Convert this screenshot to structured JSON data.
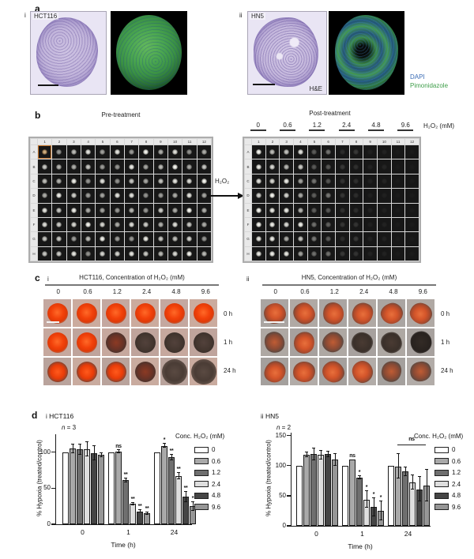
{
  "figure": {
    "panels": {
      "a": {
        "label": "a",
        "i": {
          "roman": "i",
          "cell_line": "HCT116"
        },
        "ii": {
          "roman": "ii",
          "cell_line": "HN5",
          "stain_label": "H&E"
        },
        "legend": {
          "dapi": "DAPI",
          "dapi_color": "#3a6cb5",
          "pimonidazole": "Pimonidazole",
          "pimonidazole_color": "#3f9e4a"
        }
      },
      "b": {
        "label": "b",
        "pre": {
          "title": "Pre-treatment",
          "cols": [
            "1",
            "2",
            "3",
            "4",
            "5",
            "6",
            "7",
            "8",
            "9",
            "10",
            "11",
            "12"
          ],
          "rows": [
            "A",
            "B",
            "C",
            "D",
            "E",
            "F",
            "G",
            "H"
          ],
          "highlight_cell": "A1"
        },
        "arrow_label": "H₂O₂",
        "post": {
          "title": "Post-treatment",
          "conc_labels": [
            "0",
            "0.6",
            "1.2",
            "2.4",
            "4.8",
            "9.6"
          ],
          "unit_label": "H₂O₂ (mM)",
          "cols": [
            "1",
            "2",
            "3",
            "4",
            "5",
            "6",
            "7",
            "8",
            "9",
            "10",
            "11",
            "12"
          ],
          "rows": [
            "A",
            "B",
            "C",
            "D",
            "E",
            "F",
            "G",
            "H"
          ],
          "pair_brightness": [
            0.95,
            0.82,
            0.38,
            0.13,
            0.05,
            0.02
          ]
        }
      },
      "c": {
        "label": "c",
        "i": {
          "roman": "i",
          "title": "HCT116, Concentration of H₂O₂ (mM)",
          "conc_labels": [
            "0",
            "0.6",
            "1.2",
            "2.4",
            "4.8",
            "9.6"
          ],
          "time_labels": [
            "0 h",
            "1 h",
            "24 h"
          ],
          "cells": [
            [
              "red",
              "red",
              "red",
              "red",
              "red",
              "red"
            ],
            [
              "red",
              "red",
              "dark-red",
              "dark",
              "dark",
              "dark"
            ],
            [
              "red-rim",
              "red-rim",
              "red-rim",
              "dark-red",
              "dark-big",
              "dark-big"
            ]
          ]
        },
        "ii": {
          "roman": "ii",
          "title": "HN5, Concentration of H₂O₂ (mM)",
          "conc_labels": [
            "0",
            "0.6",
            "1.2",
            "2.4",
            "4.8",
            "9.6"
          ],
          "time_labels": [
            "0 h",
            "1 h",
            "24 h"
          ],
          "cells": [
            [
              "blob-red",
              "blob-red",
              "blob-red",
              "blob-red",
              "blob-red",
              "blob-red"
            ],
            [
              "blob-dim",
              "blob-red",
              "blob-dim",
              "blob-dark",
              "blob-dark",
              "blob-darker"
            ],
            [
              "blob-red",
              "blob-red",
              "blob-red",
              "blob-red",
              "blob-dim",
              "blob-dim"
            ]
          ]
        }
      },
      "d": {
        "label": "d",
        "i": {
          "roman": "i"
        },
        "ii": {
          "roman": "ii"
        }
      }
    }
  },
  "chart_data": [
    {
      "type": "bar",
      "title": "HCT116",
      "n_italic": "n",
      "n_rest": " = 3",
      "categories": [
        "0",
        "1",
        "24"
      ],
      "xlabel": "Time (h)",
      "ylabel": "% Hypoxia (treated/control)",
      "ylim": [
        0,
        125
      ],
      "yticks": [
        0,
        50,
        100
      ],
      "legend_title": "Conc. H₂O₂ (mM)",
      "legend_position": "right",
      "grid": false,
      "series": [
        {
          "name": "0",
          "color": "#ffffff",
          "values": [
            100,
            100,
            100
          ],
          "errors": [
            0,
            0,
            0
          ],
          "sig": [
            "",
            "",
            ""
          ]
        },
        {
          "name": "0.6",
          "color": "#a9a9a9",
          "values": [
            105,
            101,
            109
          ],
          "errors": [
            6,
            2,
            3
          ],
          "sig": [
            "",
            "ns",
            "*"
          ]
        },
        {
          "name": "1.2",
          "color": "#6f6f6f",
          "values": [
            104,
            61,
            93
          ],
          "errors": [
            7,
            3,
            4
          ],
          "sig": [
            "",
            "**",
            "**"
          ]
        },
        {
          "name": "2.4",
          "color": "#dedede",
          "values": [
            104,
            28,
            67
          ],
          "errors": [
            10,
            2,
            4
          ],
          "sig": [
            "",
            "**",
            "**"
          ]
        },
        {
          "name": "4.8",
          "color": "#454545",
          "values": [
            99,
            18,
            38
          ],
          "errors": [
            10,
            2,
            7
          ],
          "sig": [
            "",
            "**",
            "**"
          ]
        },
        {
          "name": "9.6",
          "color": "#969696",
          "values": [
            96,
            15,
            25
          ],
          "errors": [
            3,
            2,
            6
          ],
          "sig": [
            "",
            "**",
            "*"
          ]
        }
      ]
    },
    {
      "type": "bar",
      "title": "HN5",
      "n_italic": "n",
      "n_rest": " = 2",
      "categories": [
        "0",
        "1",
        "24"
      ],
      "xlabel": "Time (h)",
      "ylabel": "% Hypoxia (treated/control)",
      "ylim": [
        0,
        155
      ],
      "yticks": [
        0,
        50,
        100,
        150
      ],
      "legend_title": "Conc. H₂O₂ (mM)",
      "legend_position": "right",
      "grid": false,
      "series": [
        {
          "name": "0",
          "color": "#ffffff",
          "values": [
            100,
            100,
            100
          ],
          "errors": [
            0,
            0,
            0
          ],
          "sig": [
            "",
            "",
            ""
          ]
        },
        {
          "name": "0.6",
          "color": "#a9a9a9",
          "values": [
            118,
            110,
            99
          ],
          "errors": [
            4,
            0,
            20
          ],
          "sig": [
            "",
            "ns",
            ""
          ]
        },
        {
          "name": "1.2",
          "color": "#6f6f6f",
          "values": [
            119,
            80,
            90
          ],
          "errors": [
            10,
            3,
            7
          ],
          "sig": [
            "",
            "*",
            ""
          ]
        },
        {
          "name": "2.4",
          "color": "#dedede",
          "values": [
            118,
            44,
            72
          ],
          "errors": [
            7,
            14,
            12
          ],
          "sig": [
            "",
            "*",
            ""
          ]
        },
        {
          "name": "4.8",
          "color": "#454545",
          "values": [
            119,
            31,
            61
          ],
          "errors": [
            5,
            15,
            20
          ],
          "sig": [
            "",
            "*",
            ""
          ]
        },
        {
          "name": "9.6",
          "color": "#969696",
          "values": [
            110,
            25,
            67
          ],
          "errors": [
            10,
            16,
            26
          ],
          "sig": [
            "",
            "*",
            ""
          ]
        }
      ],
      "bracket": {
        "group": 2,
        "from_series": 1,
        "to_series": 5,
        "label": "ns",
        "y": 135
      }
    }
  ]
}
